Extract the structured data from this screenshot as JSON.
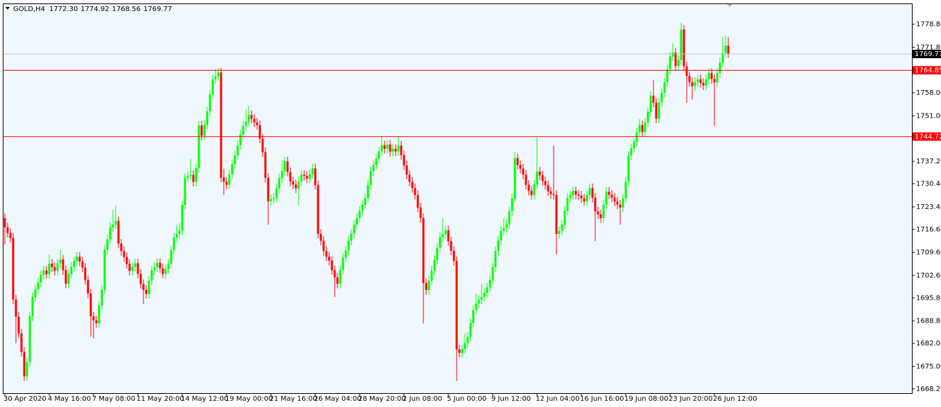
{
  "header": {
    "symbol": "GOLD,H4",
    "ohlc": [
      "1772.30",
      "1774.92",
      "1768.56",
      "1769.77"
    ]
  },
  "chart_data": {
    "type": "candlestick",
    "up_color": "#00ff00",
    "down_color": "#ff0000",
    "categories": [
      "30 Apr 2020",
      null,
      null,
      null,
      null,
      null,
      null,
      null,
      null,
      null,
      null,
      null,
      null,
      null,
      null,
      null,
      "4 May 16:00",
      null,
      null,
      null,
      null,
      null,
      null,
      null,
      null,
      null,
      null,
      null,
      null,
      null,
      null,
      null,
      "7 May 08:00",
      null,
      null,
      null,
      null,
      null,
      null,
      null,
      null,
      null,
      null,
      null,
      null,
      null,
      null,
      null,
      "11 May 20:00",
      null,
      null,
      null,
      null,
      null,
      null,
      null,
      null,
      null,
      null,
      null,
      null,
      null,
      null,
      null,
      "14 May 12:00",
      null,
      null,
      null,
      null,
      null,
      null,
      null,
      null,
      null,
      null,
      null,
      null,
      null,
      null,
      null,
      "19 May 00:00",
      null,
      null,
      null,
      null,
      null,
      null,
      null,
      null,
      null,
      null,
      null,
      null,
      null,
      null,
      null,
      "21 May 16:00",
      null,
      null,
      null,
      null,
      null,
      null,
      null,
      null,
      null,
      null,
      null,
      null,
      null,
      null,
      null,
      "26 May 04:00",
      null,
      null,
      null,
      null,
      null,
      null,
      null,
      null,
      null,
      null,
      null,
      null,
      null,
      null,
      null,
      "28 May 20:00",
      null,
      null,
      null,
      null,
      null,
      null,
      null,
      null,
      null,
      null,
      null,
      null,
      null,
      null,
      null,
      "2 Jun 08:00",
      null,
      null,
      null,
      null,
      null,
      null,
      null,
      null,
      null,
      null,
      null,
      null,
      null,
      null,
      null,
      "5 Jun 00:00",
      null,
      null,
      null,
      null,
      null,
      null,
      null,
      null,
      null,
      null,
      null,
      null,
      null,
      null,
      null,
      "9 Jun 12:00",
      null,
      null,
      null,
      null,
      null,
      null,
      null,
      null,
      null,
      null,
      null,
      null,
      null,
      null,
      null,
      "12 Jun 04:00",
      null,
      null,
      null,
      null,
      null,
      null,
      null,
      null,
      null,
      null,
      null,
      null,
      null,
      null,
      null,
      "16 Jun 16:00",
      null,
      null,
      null,
      null,
      null,
      null,
      null,
      null,
      null,
      null,
      null,
      null,
      null,
      null,
      null,
      "19 Jun 08:00",
      null,
      null,
      null,
      null,
      null,
      null,
      null,
      null,
      null,
      null,
      null,
      null,
      null,
      null,
      null,
      "23 Jun 20:00",
      null,
      null,
      null,
      null,
      null,
      null,
      null,
      null,
      null,
      null,
      null,
      null,
      null,
      null,
      null,
      "26 Jun 12:00",
      null,
      null,
      null,
      null,
      null
    ],
    "open": [
      1720.0,
      1717.2,
      1715.5,
      1714.0,
      1695.3,
      1690.1,
      1685.0,
      1679.4,
      1672.0,
      1676.3,
      1690.2,
      1696.0,
      1698.4,
      1700.5,
      1702.8,
      1704.1,
      1703.0,
      1706.2,
      1705.1,
      1704.0,
      1706.3,
      1707.4,
      1704.2,
      1700.1,
      1703.0,
      1705.2,
      1707.0,
      1708.3,
      1706.8,
      1705.0,
      1701.2,
      1697.1,
      1690.2,
      1689.0,
      1688.1,
      1693.5,
      1698.3,
      1710.4,
      1713.6,
      1717.2,
      1718.0,
      1719.1,
      1712.3,
      1710.0,
      1708.2,
      1706.1,
      1704.0,
      1705.2,
      1706.3,
      1703.1,
      1700.0,
      1698.2,
      1697.0,
      1701.0,
      1704.2,
      1705.1,
      1706.4,
      1704.8,
      1703.1,
      1704.6,
      1706.2,
      1710.3,
      1714.1,
      1715.2,
      1716.3,
      1724.0,
      1732.2,
      1732.8,
      1733.1,
      1731.0,
      1735.2,
      1748.1,
      1745.0,
      1748.3,
      1752.4,
      1757.5,
      1762.1,
      1763.0,
      1764.2,
      1732.3,
      1731.0,
      1730.1,
      1733.2,
      1736.4,
      1739.0,
      1742.1,
      1745.3,
      1748.0,
      1749.2,
      1751.3,
      1750.1,
      1749.0,
      1748.2,
      1744.1,
      1740.0,
      1732.2,
      1725.1,
      1725.8,
      1726.2,
      1729.0,
      1732.1,
      1734.3,
      1737.2,
      1734.0,
      1731.1,
      1730.2,
      1729.0,
      1731.1,
      1733.2,
      1732.8,
      1732.0,
      1733.4,
      1735.1,
      1730.0,
      1715.2,
      1713.1,
      1710.0,
      1708.3,
      1707.1,
      1704.2,
      1702.0,
      1700.1,
      1704.3,
      1708.0,
      1710.2,
      1713.1,
      1715.3,
      1718.0,
      1720.1,
      1722.2,
      1724.0,
      1726.1,
      1730.0,
      1734.2,
      1736.1,
      1738.0,
      1740.2,
      1742.1,
      1741.0,
      1742.3,
      1740.1,
      1741.0,
      1740.2,
      1742.0,
      1739.1,
      1736.0,
      1733.2,
      1731.0,
      1729.1,
      1727.0,
      1723.2,
      1720.0,
      1700.3,
      1698.2,
      1701.0,
      1704.1,
      1707.3,
      1711.0,
      1714.2,
      1715.1,
      1716.3,
      1713.0,
      1710.1,
      1707.0,
      1680.2,
      1679.1,
      1680.3,
      1682.1,
      1684.0,
      1688.2,
      1692.1,
      1694.0,
      1695.2,
      1696.1,
      1697.3,
      1699.0,
      1701.2,
      1705.1,
      1710.0,
      1713.2,
      1716.1,
      1717.0,
      1718.2,
      1722.1,
      1726.0,
      1738.2,
      1736.1,
      1735.0,
      1733.2,
      1730.1,
      1728.3,
      1727.0,
      1730.2,
      1734.1,
      1733.0,
      1731.2,
      1730.0,
      1728.1,
      1727.3,
      1727.0,
      1715.2,
      1716.1,
      1718.0,
      1722.2,
      1726.1,
      1727.0,
      1728.2,
      1727.1,
      1726.8,
      1726.0,
      1725.1,
      1727.0,
      1729.1,
      1726.2,
      1722.0,
      1721.1,
      1720.0,
      1724.1,
      1728.0,
      1727.1,
      1726.2,
      1725.0,
      1724.1,
      1723.2,
      1726.0,
      1731.1,
      1739.0,
      1741.2,
      1743.1,
      1746.0,
      1748.2,
      1746.1,
      1749.0,
      1752.2,
      1757.1,
      1755.0,
      1750.2,
      1755.1,
      1758.0,
      1761.2,
      1765.1,
      1769.0,
      1770.2,
      1766.1,
      1768.0,
      1777.2,
      1766.0,
      1763.1,
      1761.2,
      1760.0,
      1761.3,
      1762.1,
      1761.0,
      1760.2,
      1762.1,
      1764.0,
      1762.2,
      1761.1,
      1764.0,
      1767.2,
      1770.1,
      1772.3
    ],
    "high": [
      1721.4,
      1718.6,
      1716.9,
      1715.4,
      1696.7,
      1691.5,
      1686.4,
      1680.8,
      1677.7,
      1691.6,
      1697.4,
      1699.8,
      1701.9,
      1704.2,
      1705.5,
      1705.5,
      1709.0,
      1707.6,
      1706.5,
      1707.7,
      1710.5,
      1708.8,
      1705.6,
      1704.4,
      1706.6,
      1708.4,
      1709.7,
      1709.7,
      1708.2,
      1706.4,
      1702.6,
      1698.5,
      1691.6,
      1690.4,
      1694.9,
      1699.7,
      1711.8,
      1715.0,
      1718.6,
      1722.5,
      1723.8,
      1720.5,
      1713.7,
      1711.4,
      1709.6,
      1707.5,
      1706.6,
      1707.7,
      1707.7,
      1704.5,
      1701.4,
      1699.6,
      1702.4,
      1705.6,
      1706.5,
      1707.8,
      1707.8,
      1706.2,
      1706.0,
      1707.6,
      1711.7,
      1715.5,
      1718.0,
      1718.5,
      1725.4,
      1733.6,
      1734.2,
      1738.0,
      1734.5,
      1736.6,
      1749.5,
      1749.5,
      1749.7,
      1753.8,
      1758.9,
      1763.5,
      1765.2,
      1765.6,
      1765.6,
      1735.0,
      1732.4,
      1734.6,
      1737.8,
      1740.4,
      1743.5,
      1746.7,
      1749.4,
      1753.0,
      1754.0,
      1752.7,
      1751.5,
      1750.4,
      1749.6,
      1745.5,
      1741.4,
      1733.6,
      1727.2,
      1727.6,
      1730.4,
      1733.5,
      1737.5,
      1738.6,
      1738.6,
      1735.4,
      1732.5,
      1731.6,
      1732.5,
      1734.6,
      1734.6,
      1734.2,
      1734.8,
      1736.5,
      1736.5,
      1731.4,
      1716.6,
      1714.5,
      1711.4,
      1709.7,
      1708.5,
      1705.6,
      1703.4,
      1705.7,
      1709.4,
      1711.6,
      1714.5,
      1716.7,
      1719.4,
      1721.5,
      1723.6,
      1725.4,
      1727.5,
      1731.4,
      1735.6,
      1737.5,
      1739.4,
      1741.6,
      1745.0,
      1743.5,
      1743.7,
      1743.7,
      1742.4,
      1742.4,
      1745.0,
      1743.4,
      1740.5,
      1737.4,
      1734.6,
      1732.4,
      1730.5,
      1728.4,
      1724.6,
      1721.4,
      1701.7,
      1702.4,
      1705.5,
      1708.7,
      1712.4,
      1715.6,
      1720.0,
      1717.7,
      1717.7,
      1714.4,
      1711.5,
      1708.4,
      1681.6,
      1681.7,
      1685.0,
      1685.4,
      1689.6,
      1693.5,
      1697.0,
      1696.6,
      1700.0,
      1698.7,
      1700.4,
      1702.6,
      1706.5,
      1711.4,
      1714.6,
      1717.5,
      1720.0,
      1719.6,
      1723.5,
      1727.4,
      1740.0,
      1739.6,
      1737.5,
      1736.4,
      1734.6,
      1731.5,
      1729.7,
      1731.6,
      1744.5,
      1735.5,
      1734.4,
      1732.6,
      1731.4,
      1729.5,
      1742.0,
      1728.4,
      1717.5,
      1719.4,
      1723.6,
      1727.5,
      1728.4,
      1729.6,
      1729.6,
      1728.5,
      1728.2,
      1727.4,
      1728.4,
      1730.5,
      1730.5,
      1727.6,
      1723.4,
      1722.5,
      1725.5,
      1729.4,
      1729.4,
      1728.5,
      1727.6,
      1726.4,
      1725.5,
      1727.4,
      1732.5,
      1740.4,
      1742.6,
      1744.5,
      1747.4,
      1750.0,
      1749.6,
      1750.4,
      1753.6,
      1758.5,
      1762.0,
      1756.4,
      1756.5,
      1759.4,
      1762.6,
      1766.5,
      1770.4,
      1773.0,
      1771.6,
      1769.4,
      1779.3,
      1778.6,
      1767.4,
      1764.5,
      1762.6,
      1762.7,
      1763.5,
      1763.5,
      1762.4,
      1763.5,
      1765.4,
      1765.4,
      1763.6,
      1765.4,
      1768.6,
      1775.0,
      1775.3,
      1774.92
    ],
    "low": [
      1712.0,
      1714.1,
      1712.6,
      1693.9,
      1682.0,
      1683.6,
      1678.0,
      1670.6,
      1670.6,
      1674.9,
      1688.8,
      1694.6,
      1697.0,
      1699.1,
      1701.4,
      1701.6,
      1701.6,
      1703.7,
      1702.6,
      1702.6,
      1704.9,
      1702.8,
      1698.7,
      1698.7,
      1701.6,
      1703.8,
      1705.6,
      1705.4,
      1703.6,
      1699.8,
      1695.7,
      1684.0,
      1683.5,
      1686.7,
      1686.7,
      1692.1,
      1696.9,
      1709.0,
      1712.2,
      1715.8,
      1716.6,
      1710.9,
      1708.6,
      1706.8,
      1704.7,
      1702.6,
      1702.6,
      1703.8,
      1701.7,
      1698.6,
      1694.0,
      1695.6,
      1695.6,
      1699.6,
      1702.8,
      1703.7,
      1703.4,
      1701.7,
      1701.7,
      1703.2,
      1704.8,
      1708.9,
      1712.7,
      1713.8,
      1714.9,
      1722.6,
      1730.8,
      1731.4,
      1729.6,
      1729.6,
      1733.8,
      1743.6,
      1743.6,
      1746.9,
      1751.0,
      1756.1,
      1760.7,
      1761.6,
      1730.9,
      1727.0,
      1728.7,
      1728.7,
      1731.8,
      1735.0,
      1737.6,
      1740.7,
      1743.9,
      1746.6,
      1747.8,
      1748.7,
      1747.6,
      1746.8,
      1742.7,
      1738.6,
      1730.8,
      1718.0,
      1723.7,
      1724.4,
      1724.8,
      1727.6,
      1730.7,
      1732.9,
      1732.6,
      1729.7,
      1728.8,
      1727.6,
      1724.0,
      1729.7,
      1731.4,
      1730.6,
      1730.6,
      1732.0,
      1728.6,
      1713.8,
      1711.7,
      1708.6,
      1706.9,
      1705.7,
      1702.8,
      1696.0,
      1698.7,
      1698.7,
      1702.9,
      1706.6,
      1708.8,
      1711.7,
      1713.9,
      1716.6,
      1718.7,
      1720.8,
      1722.6,
      1724.7,
      1728.6,
      1732.8,
      1734.7,
      1736.6,
      1738.8,
      1739.6,
      1739.6,
      1738.7,
      1738.7,
      1738.8,
      1738.8,
      1737.7,
      1734.6,
      1731.8,
      1729.6,
      1727.7,
      1725.6,
      1721.8,
      1718.6,
      1688.0,
      1696.8,
      1696.8,
      1699.6,
      1702.7,
      1705.9,
      1709.6,
      1712.8,
      1713.7,
      1711.6,
      1708.7,
      1705.6,
      1670.6,
      1677.7,
      1677.7,
      1678.9,
      1680.7,
      1682.6,
      1686.8,
      1690.7,
      1692.6,
      1693.8,
      1694.7,
      1695.9,
      1697.6,
      1699.8,
      1703.7,
      1708.6,
      1711.8,
      1714.7,
      1715.6,
      1716.8,
      1720.7,
      1724.6,
      1734.7,
      1733.6,
      1731.8,
      1728.7,
      1726.9,
      1725.6,
      1725.6,
      1728.8,
      1731.6,
      1729.8,
      1728.6,
      1726.7,
      1725.9,
      1725.6,
      1709.0,
      1713.8,
      1714.7,
      1716.6,
      1720.8,
      1724.7,
      1725.6,
      1725.7,
      1725.4,
      1724.6,
      1723.7,
      1723.7,
      1725.6,
      1724.8,
      1713.0,
      1719.7,
      1718.6,
      1718.6,
      1722.7,
      1725.7,
      1724.8,
      1723.6,
      1722.7,
      1718.0,
      1721.8,
      1724.6,
      1729.7,
      1737.6,
      1739.8,
      1741.7,
      1744.6,
      1744.7,
      1744.7,
      1747.6,
      1750.8,
      1753.6,
      1748.8,
      1748.8,
      1753.7,
      1756.6,
      1759.8,
      1763.7,
      1767.6,
      1764.7,
      1764.7,
      1766.6,
      1764.6,
      1755.0,
      1759.8,
      1756.0,
      1758.6,
      1759.9,
      1759.6,
      1758.8,
      1758.8,
      1760.7,
      1760.8,
      1748.0,
      1759.7,
      1762.6,
      1765.8,
      1768.7,
      1768.56
    ],
    "close": [
      1717.2,
      1715.5,
      1714.0,
      1695.3,
      1690.1,
      1685.0,
      1679.4,
      1672.0,
      1676.3,
      1690.2,
      1696.0,
      1698.4,
      1700.5,
      1702.8,
      1704.1,
      1703.0,
      1706.2,
      1705.1,
      1704.0,
      1706.3,
      1707.4,
      1704.2,
      1700.1,
      1703.0,
      1705.2,
      1707.0,
      1708.3,
      1706.8,
      1705.0,
      1701.2,
      1697.1,
      1690.2,
      1689.0,
      1688.1,
      1693.5,
      1698.3,
      1710.4,
      1713.6,
      1717.2,
      1718.0,
      1719.1,
      1712.3,
      1710.0,
      1708.2,
      1706.1,
      1704.0,
      1705.2,
      1706.3,
      1703.1,
      1700.0,
      1698.2,
      1697.0,
      1701.0,
      1704.2,
      1705.1,
      1706.4,
      1704.8,
      1703.1,
      1704.6,
      1706.2,
      1710.3,
      1714.1,
      1715.2,
      1716.3,
      1724.0,
      1732.2,
      1732.8,
      1733.1,
      1731.0,
      1735.2,
      1748.1,
      1745.0,
      1748.3,
      1752.4,
      1757.5,
      1762.1,
      1763.0,
      1764.2,
      1732.3,
      1731.0,
      1730.1,
      1733.2,
      1736.4,
      1739.0,
      1742.1,
      1745.3,
      1748.0,
      1749.2,
      1751.3,
      1750.1,
      1749.0,
      1748.2,
      1744.1,
      1740.0,
      1732.2,
      1725.1,
      1725.8,
      1726.2,
      1729.0,
      1732.1,
      1734.3,
      1737.2,
      1734.0,
      1731.1,
      1730.2,
      1729.0,
      1731.1,
      1733.2,
      1732.8,
      1732.0,
      1733.4,
      1735.1,
      1730.0,
      1715.2,
      1713.1,
      1710.0,
      1708.3,
      1707.1,
      1704.2,
      1702.0,
      1700.1,
      1704.3,
      1708.0,
      1710.2,
      1713.1,
      1715.3,
      1718.0,
      1720.1,
      1722.2,
      1724.0,
      1726.1,
      1730.0,
      1734.2,
      1736.1,
      1738.0,
      1740.2,
      1742.1,
      1741.0,
      1742.3,
      1740.1,
      1741.0,
      1740.2,
      1742.0,
      1739.1,
      1736.0,
      1733.2,
      1731.0,
      1729.1,
      1727.0,
      1723.2,
      1720.0,
      1700.3,
      1698.2,
      1701.0,
      1704.1,
      1707.3,
      1711.0,
      1714.2,
      1715.1,
      1716.3,
      1713.0,
      1710.1,
      1707.0,
      1680.2,
      1679.1,
      1680.3,
      1682.1,
      1684.0,
      1688.2,
      1692.1,
      1694.0,
      1695.2,
      1696.1,
      1697.3,
      1699.0,
      1701.2,
      1705.1,
      1710.0,
      1713.2,
      1716.1,
      1717.0,
      1718.2,
      1722.1,
      1726.0,
      1738.2,
      1736.1,
      1735.0,
      1733.2,
      1730.1,
      1728.3,
      1727.0,
      1730.2,
      1734.1,
      1733.0,
      1731.2,
      1730.0,
      1728.1,
      1727.3,
      1727.0,
      1715.2,
      1716.1,
      1718.0,
      1722.2,
      1726.1,
      1727.0,
      1728.2,
      1727.1,
      1726.8,
      1726.0,
      1725.1,
      1727.0,
      1729.1,
      1726.2,
      1722.0,
      1721.1,
      1720.0,
      1724.1,
      1728.0,
      1727.1,
      1726.2,
      1725.0,
      1724.1,
      1723.2,
      1726.0,
      1731.1,
      1739.0,
      1741.2,
      1743.1,
      1746.0,
      1748.2,
      1746.1,
      1749.0,
      1752.2,
      1757.1,
      1755.0,
      1750.2,
      1755.1,
      1758.0,
      1761.2,
      1765.1,
      1769.0,
      1770.2,
      1766.1,
      1768.0,
      1777.2,
      1766.0,
      1763.1,
      1761.2,
      1760.0,
      1761.3,
      1762.1,
      1761.0,
      1760.2,
      1762.1,
      1764.0,
      1762.2,
      1761.1,
      1764.0,
      1767.2,
      1770.1,
      1772.3,
      1769.77
    ],
    "ylim": [
      1785.1,
      1666.9
    ],
    "yticks": [
      {
        "value": 1778.8,
        "label": "1778.80"
      },
      {
        "value": 1771.8,
        "label": "1771.80"
      },
      {
        "value": 1765,
        "label": "1765.00"
      },
      {
        "value": 1758,
        "label": "1758.00"
      },
      {
        "value": 1751,
        "label": "1751.00"
      },
      {
        "value": 1744.2,
        "label": "1744.20"
      },
      {
        "value": 1737.2,
        "label": "1737.20"
      },
      {
        "value": 1730.4,
        "label": "1730.40"
      },
      {
        "value": 1723.4,
        "label": "1723.40"
      },
      {
        "value": 1716.6,
        "label": "1716.60"
      },
      {
        "value": 1709.6,
        "label": "1709.60"
      },
      {
        "value": 1702.6,
        "label": "1702.60"
      },
      {
        "value": 1695.8,
        "label": "1695.80"
      },
      {
        "value": 1688.8,
        "label": "1688.80"
      },
      {
        "value": 1682,
        "label": "1682.00"
      },
      {
        "value": 1675,
        "label": "1675.00"
      },
      {
        "value": 1668.2,
        "label": "1668.20"
      }
    ],
    "current_price": {
      "value": 1769.77,
      "color": "#c0c0c0"
    },
    "levels": [
      {
        "value": 1764.85,
        "color": "#ff0000"
      },
      {
        "value": 1744.72,
        "color": "#ff0000"
      }
    ]
  }
}
